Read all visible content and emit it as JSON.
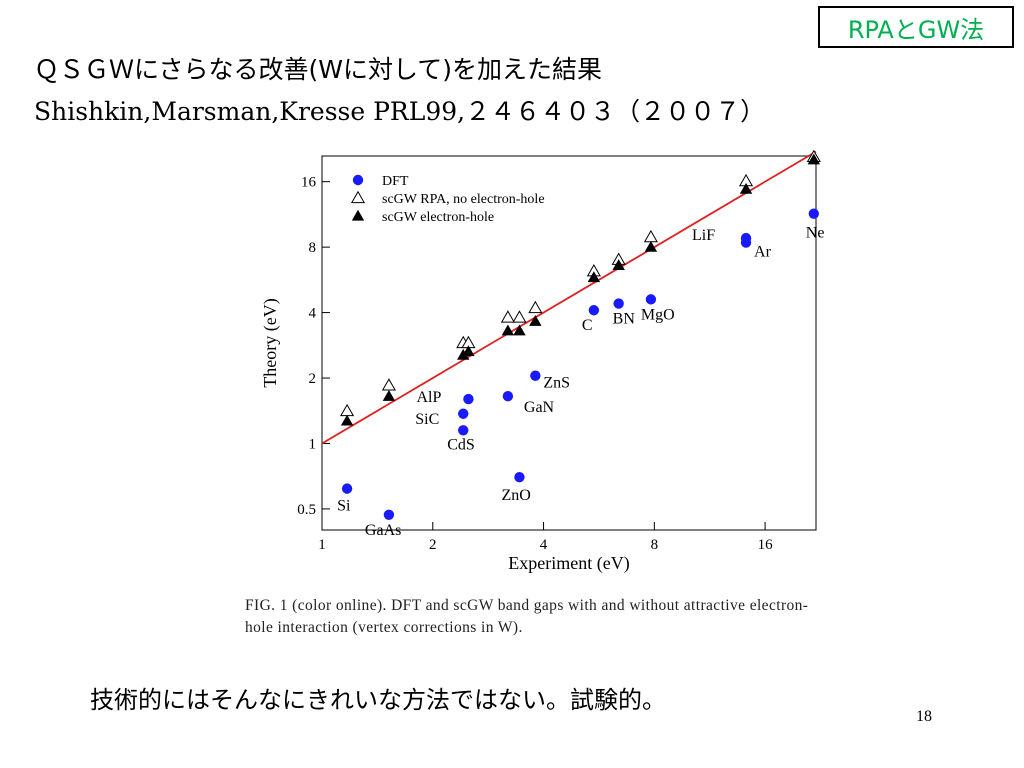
{
  "slide": {
    "tag": "RPAとGW法",
    "title_line1": "ＱＳＧＷにさらなる改善(Wに対して)を加えた結果",
    "title_line2_ref": "Shishkin,Marsman,Kresse PRL99,",
    "title_line2_num": "２４６４０３（２００７）",
    "caption": "FIG. 1 (color online). DFT and scGW band gaps with and without attractive electron-hole interaction (vertex corrections in W).",
    "note": "技術的にはそんなにきれいな方法ではない。試験的。",
    "page_number": "18"
  },
  "chart_data": {
    "type": "scatter",
    "xlabel": "Experiment (eV)",
    "ylabel": "Theory (eV)",
    "x_scale": "log",
    "y_scale": "log",
    "xlim": [
      1,
      22
    ],
    "ylim": [
      0.4,
      21
    ],
    "x_ticks": [
      1,
      2,
      4,
      8,
      16
    ],
    "y_ticks": [
      0.5,
      1,
      2,
      4,
      8,
      16
    ],
    "legend_position": "top-left",
    "colors": {
      "dft": "#1a1aff",
      "fit_line": "#e02020",
      "markers": "#000000"
    },
    "series": [
      {
        "name": "DFT",
        "marker": "filled-circle",
        "points": [
          {
            "label": "Si",
            "x": 1.17,
            "y": 0.62
          },
          {
            "label": "GaAs",
            "x": 1.52,
            "y": 0.47
          },
          {
            "label": "AlP",
            "x": 2.5,
            "y": 1.6
          },
          {
            "label": "SiC",
            "x": 2.42,
            "y": 1.37
          },
          {
            "label": "CdS",
            "x": 2.42,
            "y": 1.15
          },
          {
            "label": "GaN",
            "x": 3.2,
            "y": 1.65
          },
          {
            "label": "ZnS",
            "x": 3.8,
            "y": 2.05
          },
          {
            "label": "ZnO",
            "x": 3.44,
            "y": 0.7
          },
          {
            "label": "C",
            "x": 5.48,
            "y": 4.1
          },
          {
            "label": "BN",
            "x": 6.4,
            "y": 4.4
          },
          {
            "label": "MgO",
            "x": 7.83,
            "y": 4.6
          },
          {
            "label": "LiF",
            "x": 14.2,
            "y": 8.8
          },
          {
            "label": "Ar",
            "x": 14.2,
            "y": 8.4
          },
          {
            "label": "Ne",
            "x": 21.7,
            "y": 11.4
          }
        ]
      },
      {
        "name": "scGW RPA, no electron-hole",
        "marker": "open-triangle",
        "points": [
          {
            "x": 1.17,
            "y": 1.41
          },
          {
            "x": 1.52,
            "y": 1.85
          },
          {
            "x": 2.42,
            "y": 2.9
          },
          {
            "x": 2.5,
            "y": 2.9
          },
          {
            "x": 3.2,
            "y": 3.8
          },
          {
            "x": 3.44,
            "y": 3.8
          },
          {
            "x": 3.8,
            "y": 4.2
          },
          {
            "x": 5.48,
            "y": 6.2
          },
          {
            "x": 6.4,
            "y": 7.0
          },
          {
            "x": 7.83,
            "y": 8.9
          },
          {
            "x": 14.2,
            "y": 16.1
          },
          {
            "x": 21.7,
            "y": 20.8
          }
        ]
      },
      {
        "name": "scGW electron-hole",
        "marker": "filled-triangle",
        "points": [
          {
            "x": 1.17,
            "y": 1.27
          },
          {
            "x": 1.52,
            "y": 1.65
          },
          {
            "x": 2.42,
            "y": 2.55
          },
          {
            "x": 2.5,
            "y": 2.65
          },
          {
            "x": 3.2,
            "y": 3.3
          },
          {
            "x": 3.44,
            "y": 3.3
          },
          {
            "x": 3.8,
            "y": 3.65
          },
          {
            "x": 5.48,
            "y": 5.8
          },
          {
            "x": 6.4,
            "y": 6.6
          },
          {
            "x": 7.83,
            "y": 8.0
          },
          {
            "x": 14.2,
            "y": 14.8
          },
          {
            "x": 21.7,
            "y": 20.2
          }
        ]
      }
    ],
    "reference_line": {
      "slope": 1,
      "color": "#e02020"
    }
  }
}
